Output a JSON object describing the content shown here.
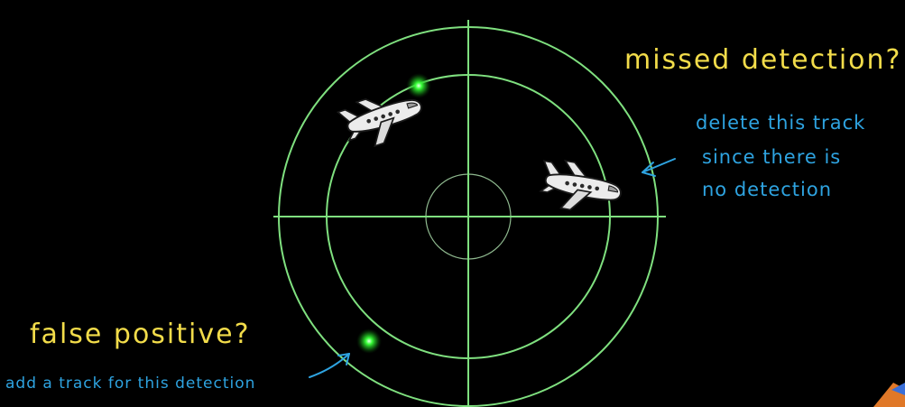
{
  "labels": {
    "missed_detection": "missed detection?",
    "delete_note_line1": "delete this track",
    "delete_note_line2": "since there is",
    "delete_note_line3": "no detection",
    "false_positive": "false positive?",
    "add_note": "add a track for this detection"
  },
  "colors": {
    "background": "#000000",
    "radar_ring": "#7fe07f",
    "detection_glow": "#39ff39",
    "yellow_text": "#f2dc4a",
    "blue_text": "#2ea3e0",
    "aircraft_fill": "#e8e8e8"
  },
  "icons": {
    "aircraft": "airplane-icon",
    "detection": "detection-blip-icon",
    "arrow": "arrow-icon"
  }
}
